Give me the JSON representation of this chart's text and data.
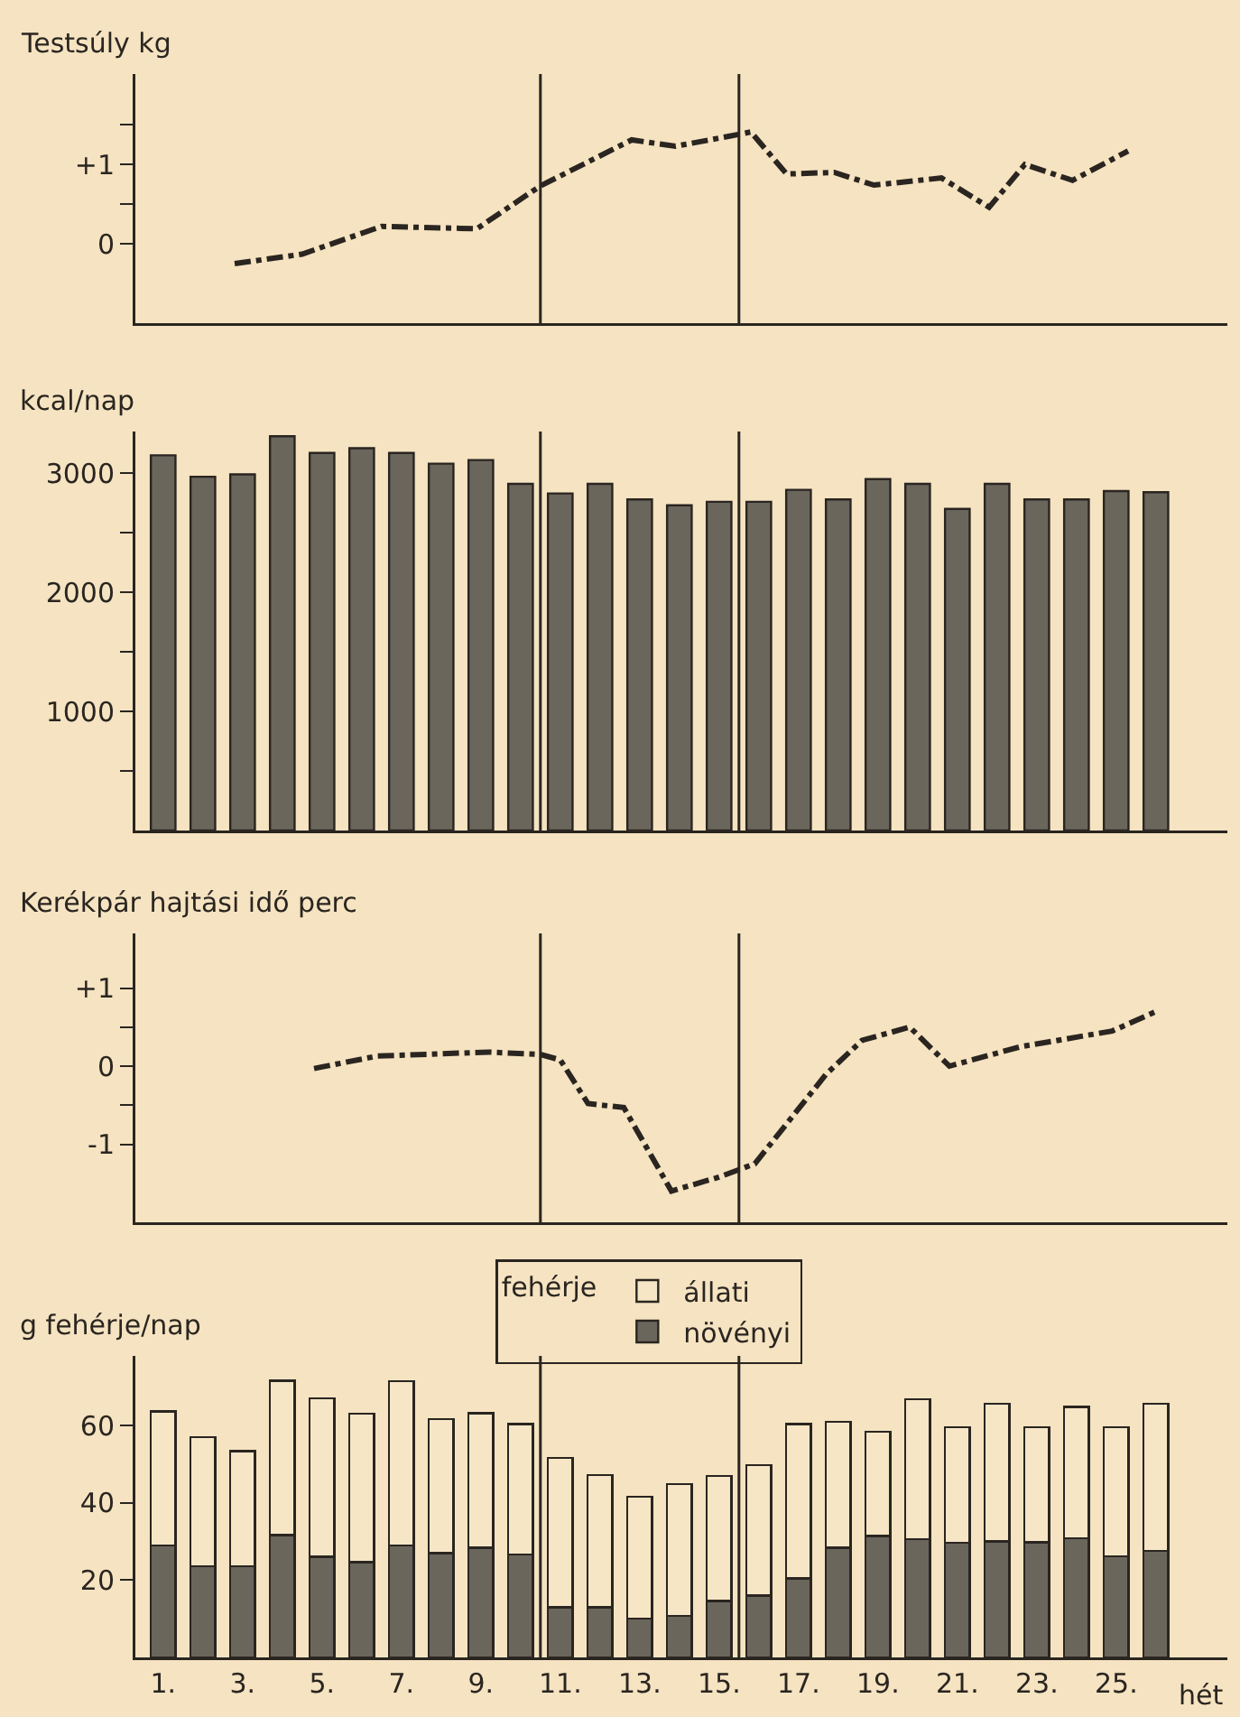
{
  "chart_data": [
    {
      "type": "line",
      "ylabel": "Testsúly kg",
      "xlim": [
        0.3,
        27.8
      ],
      "ylim": [
        -1,
        2.14
      ],
      "yticks": [
        0,
        {
          "value": 0.5,
          "label": null
        },
        {
          "value": 1,
          "label": "+1"
        },
        {
          "value": 1.5,
          "label": null
        }
      ],
      "tick_labels": "y",
      "grid": false,
      "legend": false,
      "marker": "none",
      "line_style": "dashed",
      "series": [
        {
          "color": "#2a2520",
          "x": [
            2.8,
            4.5,
            6.5,
            8.9,
            10.5,
            12.8,
            13.9,
            15.3,
            15.8,
            16.7,
            17.9,
            18.9,
            20.6,
            21.8,
            22.7,
            23.9,
            25.3
          ],
          "values": [
            -0.25,
            -0.13,
            0.22,
            0.19,
            0.73,
            1.31,
            1.23,
            1.36,
            1.41,
            0.88,
            0.9,
            0.74,
            0.83,
            0.46,
            1.0,
            0.8,
            1.17
          ]
        }
      ],
      "ref_lines": [
        {
          "axis": "x",
          "value": 10.5,
          "color": "#2a2520"
        },
        {
          "axis": "x",
          "value": 15.5,
          "color": "#2a2520"
        }
      ]
    },
    {
      "type": "bar",
      "ylabel": "kcal/nap",
      "xlim": [
        0.3,
        27.8
      ],
      "ylim": [
        0,
        3350
      ],
      "yticks": [
        {
          "value": 500,
          "label": null
        },
        1000,
        {
          "value": 1500,
          "label": null
        },
        2000,
        {
          "value": 2500,
          "label": null
        },
        3000
      ],
      "tick_labels": "y",
      "grid": false,
      "legend": false,
      "x": [
        1,
        2,
        3,
        4,
        5,
        6,
        7,
        8,
        9,
        10,
        11,
        12,
        13,
        14,
        15,
        16,
        17,
        18,
        19,
        20,
        21,
        22,
        23,
        24,
        25,
        26
      ],
      "series": [
        {
          "color": "#6b665c",
          "values": [
            3150,
            2970,
            2990,
            3310,
            3170,
            3210,
            3170,
            3080,
            3110,
            2910,
            2830,
            2910,
            2780,
            2730,
            2760,
            2760,
            2860,
            2780,
            2950,
            2910,
            2700,
            2910,
            2780,
            2780,
            2850,
            2840
          ]
        }
      ],
      "ref_lines": [
        {
          "axis": "x",
          "value": 10.5,
          "color": "#2a2520"
        },
        {
          "axis": "x",
          "value": 15.5,
          "color": "#2a2520"
        }
      ]
    },
    {
      "type": "line",
      "ylabel": "Kerékpár hajtási idő perc",
      "xlim": [
        0.3,
        27.8
      ],
      "ylim": [
        -2,
        1.7
      ],
      "yticks": [
        -1,
        {
          "value": -0.5,
          "label": null
        },
        0,
        {
          "value": 0.5,
          "label": null
        },
        {
          "value": 1,
          "label": "+1"
        }
      ],
      "tick_labels": "y",
      "grid": false,
      "legend": false,
      "marker": "none",
      "line_style": "dashed",
      "series": [
        {
          "color": "#2a2520",
          "x": [
            4.8,
            6.4,
            9.2,
            10.5,
            11.0,
            11.7,
            12.6,
            13.8,
            15.0,
            15.9,
            17.7,
            18.6,
            19.8,
            20.8,
            22.6,
            24.9,
            26.0
          ],
          "values": [
            -0.03,
            0.13,
            0.18,
            0.15,
            0.08,
            -0.48,
            -0.53,
            -1.6,
            -1.42,
            -1.25,
            -0.1,
            0.33,
            0.5,
            0,
            0.25,
            0.45,
            0.7
          ]
        }
      ],
      "ref_lines": [
        {
          "axis": "x",
          "value": 10.5,
          "color": "#2a2520"
        },
        {
          "axis": "x",
          "value": 15.5,
          "color": "#2a2520"
        }
      ]
    },
    {
      "type": "bar",
      "ylabel": "g fehérje/nap",
      "xlabel": "hét",
      "legend_title": "fehérje",
      "xlim": [
        0.3,
        27.8
      ],
      "ylim": [
        0,
        78
      ],
      "yticks": [
        20,
        40,
        60
      ],
      "grid": false,
      "legend": "top",
      "stacked": true,
      "xticks": [
        {
          "value": 1,
          "label": "1."
        },
        {
          "value": 3,
          "label": "3."
        },
        {
          "value": 5,
          "label": "5."
        },
        {
          "value": 7,
          "label": "7."
        },
        {
          "value": 9,
          "label": "9."
        },
        {
          "value": 11,
          "label": "11."
        },
        {
          "value": 13,
          "label": "13."
        },
        {
          "value": 15,
          "label": "15."
        },
        {
          "value": 17,
          "label": "17."
        },
        {
          "value": 19,
          "label": "19."
        },
        {
          "value": 21,
          "label": "21."
        },
        {
          "value": 23,
          "label": "23."
        },
        {
          "value": 25,
          "label": "25."
        }
      ],
      "x": [
        1,
        2,
        3,
        4,
        5,
        6,
        7,
        8,
        9,
        10,
        11,
        12,
        13,
        14,
        15,
        16,
        17,
        18,
        19,
        20,
        21,
        22,
        23,
        24,
        25,
        26
      ],
      "series": [
        {
          "name": "növényi",
          "color": "#6b665c",
          "values": [
            29,
            23.6,
            23.6,
            31.6,
            26,
            24.6,
            29,
            27,
            28.4,
            26.6,
            13,
            13,
            10,
            10.8,
            14.6,
            16,
            20.4,
            28.4,
            31.4,
            30.6,
            29.6,
            30,
            29.8,
            30.8,
            26.2,
            27.6
          ]
        },
        {
          "name": "állati",
          "color": "#f6e6c6",
          "values": [
            34.6,
            33.4,
            29.8,
            40,
            41,
            38.4,
            42.4,
            34.6,
            34.8,
            33.8,
            38.6,
            34.2,
            31.6,
            34,
            32.4,
            33.8,
            40,
            32.6,
            27,
            36.2,
            30,
            35.6,
            29.8,
            34,
            33.4,
            38
          ]
        }
      ],
      "ref_lines": [
        {
          "axis": "x",
          "value": 10.5,
          "color": "#2a2520"
        },
        {
          "axis": "x",
          "value": 15.5,
          "color": "#2a2520"
        }
      ]
    }
  ]
}
